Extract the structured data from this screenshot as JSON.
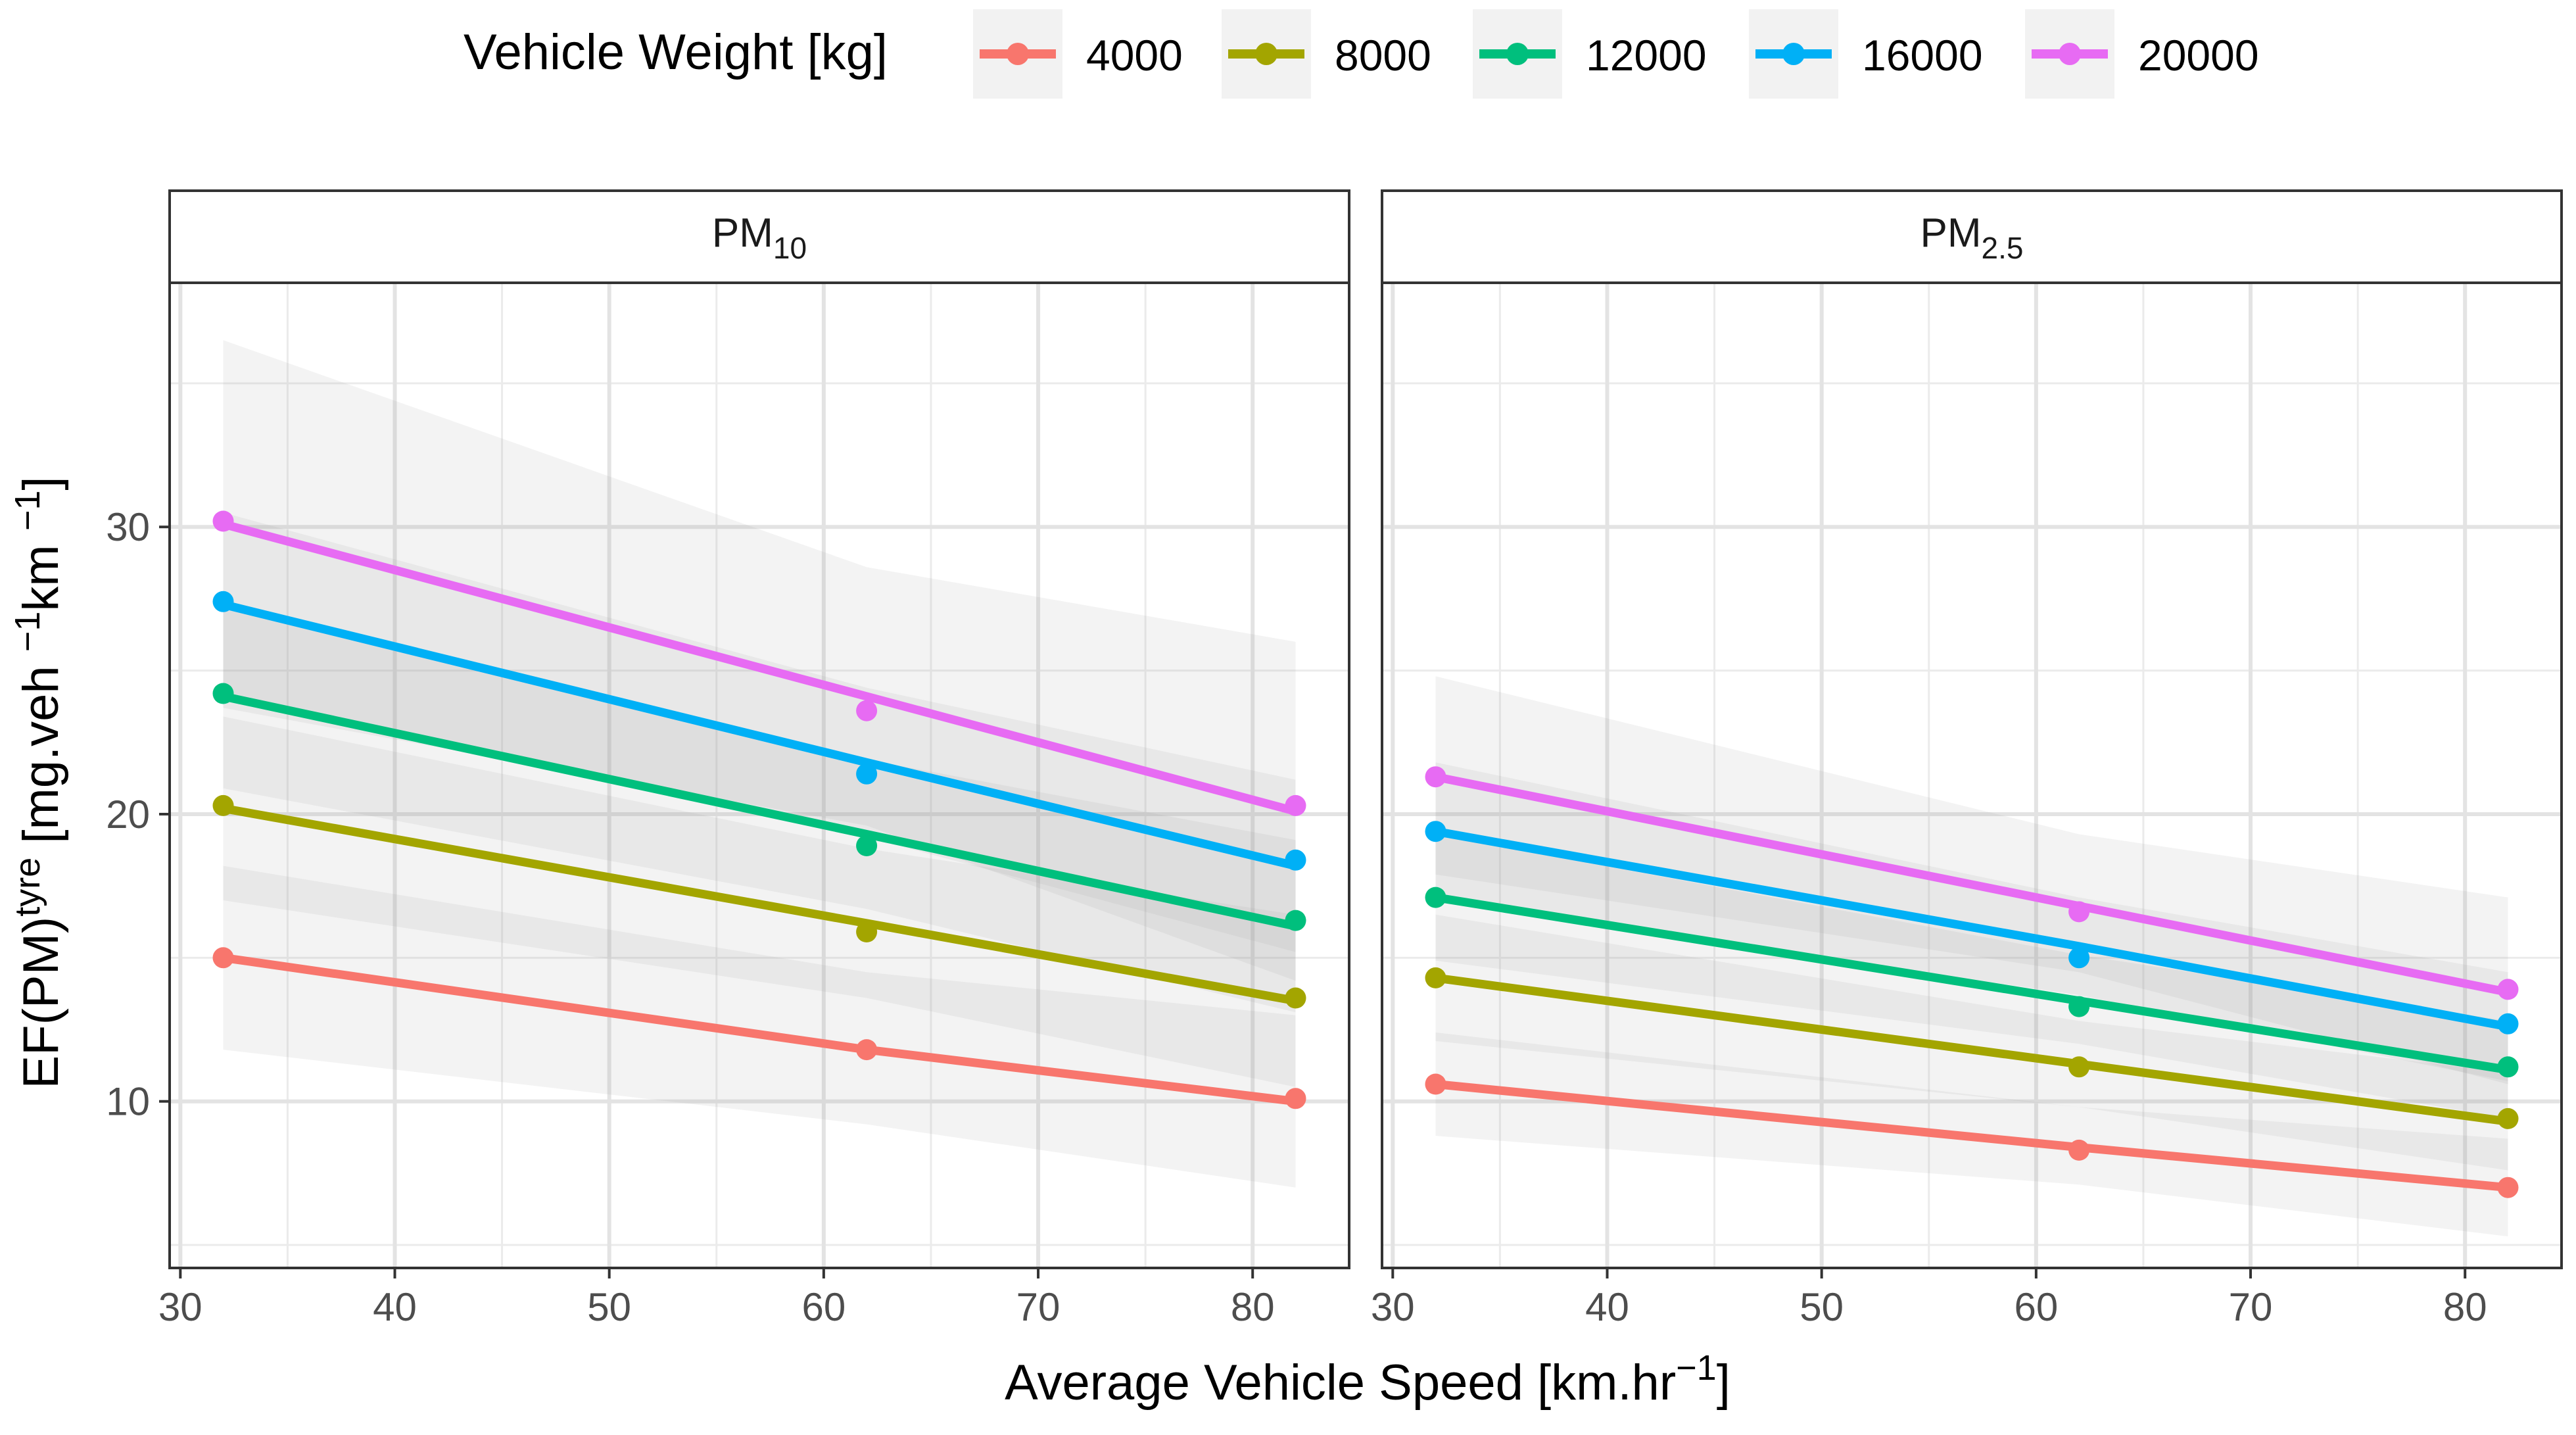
{
  "legend": {
    "title": "Vehicle Weight [kg]",
    "placement": "top"
  },
  "chart_data": {
    "type": "line",
    "title": "",
    "xlabel": {
      "main": "Average Vehicle Speed [km.hr",
      "sup": "−1",
      "tail": "]"
    },
    "ylabel": {
      "a": "EF(PM)",
      "sup1": "tyre",
      "b": " [mg.veh ",
      "sup2": "−1",
      "c": "km ",
      "sup3": "−1",
      "d": "]"
    },
    "xlim": [
      29.5,
      84.5
    ],
    "ylim": [
      4.2,
      38.5
    ],
    "xticks": [
      30,
      40,
      50,
      60,
      70,
      80
    ],
    "yticks": [
      10,
      20,
      30
    ],
    "grid": true,
    "series_names": [
      "4000",
      "8000",
      "12000",
      "16000",
      "20000"
    ],
    "colors": [
      "#F8766D",
      "#A3A500",
      "#00BF7D",
      "#00B0F6",
      "#E76BF3"
    ],
    "panels": [
      {
        "strip": {
          "main": "PM",
          "sub": "10"
        },
        "series": [
          {
            "name": "4000",
            "x": [
              32,
              62,
              82
            ],
            "points": [
              15.0,
              11.8,
              10.1
            ],
            "fit": [
              15.0,
              11.8,
              10.0
            ],
            "ci_lo": [
              11.8,
              9.2,
              7.0
            ],
            "ci_hi": [
              18.2,
              14.5,
              13.0
            ]
          },
          {
            "name": "8000",
            "x": [
              32,
              62,
              82
            ],
            "points": [
              20.3,
              15.9,
              13.6
            ],
            "fit": [
              20.2,
              16.2,
              13.5
            ],
            "ci_lo": [
              17.0,
              13.6,
              10.5
            ],
            "ci_hi": [
              23.4,
              18.8,
              16.5
            ]
          },
          {
            "name": "12000",
            "x": [
              32,
              62,
              82
            ],
            "points": [
              24.2,
              18.9,
              16.3
            ],
            "fit": [
              24.1,
              19.3,
              16.1
            ],
            "ci_lo": [
              20.9,
              16.7,
              13.1
            ],
            "ci_hi": [
              27.3,
              21.9,
              19.1
            ]
          },
          {
            "name": "16000",
            "x": [
              32,
              62,
              82
            ],
            "points": [
              27.4,
              21.4,
              18.4
            ],
            "fit": [
              27.3,
              21.8,
              18.2
            ],
            "ci_lo": [
              24.1,
              19.2,
              15.2
            ],
            "ci_hi": [
              30.5,
              24.4,
              21.2
            ]
          },
          {
            "name": "20000",
            "x": [
              32,
              62,
              82
            ],
            "points": [
              30.2,
              23.6,
              20.3
            ],
            "fit": [
              30.1,
              24.1,
              20.1
            ],
            "ci_lo": [
              23.7,
              19.6,
              14.2
            ],
            "ci_hi": [
              36.5,
              28.6,
              26.0
            ]
          }
        ]
      },
      {
        "strip": {
          "main": "PM",
          "sub": "2.5"
        },
        "series": [
          {
            "name": "4000",
            "x": [
              32,
              62,
              82
            ],
            "points": [
              10.6,
              8.3,
              7.0
            ],
            "fit": [
              10.6,
              8.4,
              7.0
            ],
            "ci_lo": [
              8.8,
              7.1,
              5.3
            ],
            "ci_hi": [
              12.4,
              9.8,
              8.7
            ]
          },
          {
            "name": "8000",
            "x": [
              32,
              62,
              82
            ],
            "points": [
              14.3,
              11.2,
              9.4
            ],
            "fit": [
              14.3,
              11.3,
              9.3
            ],
            "ci_lo": [
              12.1,
              9.8,
              7.6
            ],
            "ci_hi": [
              16.5,
              12.8,
              11.0
            ]
          },
          {
            "name": "12000",
            "x": [
              32,
              62,
              82
            ],
            "points": [
              17.1,
              13.3,
              11.2
            ],
            "fit": [
              17.1,
              13.5,
              11.1
            ],
            "ci_lo": [
              14.9,
              12.0,
              9.4
            ],
            "ci_hi": [
              19.3,
              15.1,
              12.8
            ]
          },
          {
            "name": "16000",
            "x": [
              32,
              62,
              82
            ],
            "points": [
              19.4,
              15.0,
              12.7
            ],
            "fit": [
              19.4,
              15.4,
              12.6
            ],
            "ci_lo": [
              17.0,
              13.7,
              10.7
            ],
            "ci_hi": [
              21.8,
              17.1,
              14.5
            ]
          },
          {
            "name": "20000",
            "x": [
              32,
              62,
              82
            ],
            "points": [
              21.3,
              16.6,
              13.9
            ],
            "fit": [
              21.3,
              16.8,
              13.8
            ],
            "ci_lo": [
              17.9,
              14.5,
              10.6
            ],
            "ci_hi": [
              24.8,
              19.3,
              17.1
            ]
          }
        ]
      }
    ]
  }
}
